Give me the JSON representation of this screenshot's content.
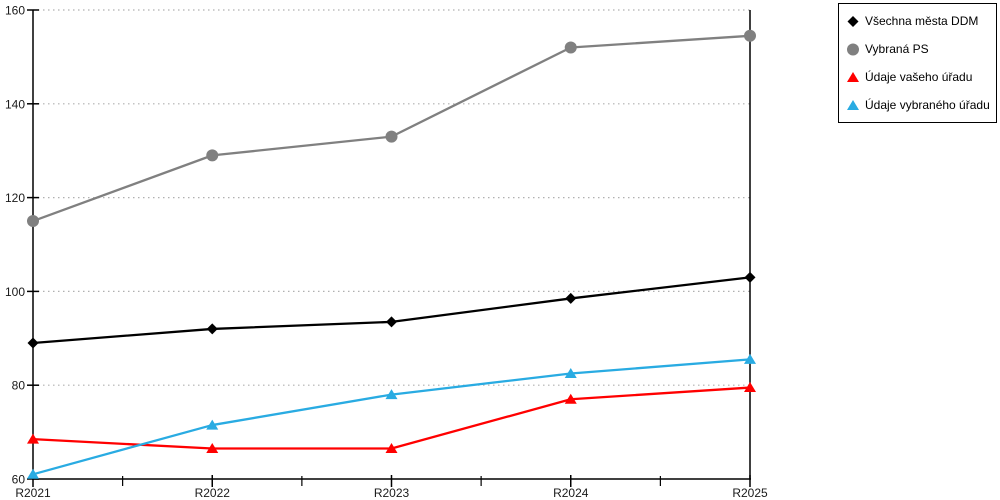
{
  "chart_data": {
    "type": "line",
    "title": "",
    "xlabel": "",
    "ylabel": "",
    "categories": [
      "R2021",
      "R2022",
      "R2023",
      "R2024",
      "R2025"
    ],
    "series": [
      {
        "name": "Všechna města DDM",
        "color": "#000000",
        "marker": "diamond",
        "values": [
          89,
          92,
          93.5,
          98.5,
          103
        ]
      },
      {
        "name": "Vybraná PS",
        "color": "#808080",
        "marker": "circle",
        "values": [
          115,
          129,
          133,
          152,
          154.5
        ]
      },
      {
        "name": "Údaje vašeho úřadu",
        "color": "#ff0000",
        "marker": "triangle",
        "values": [
          68.5,
          66.5,
          66.5,
          77,
          79.5
        ]
      },
      {
        "name": "Údaje vybraného úřadu",
        "color": "#29abe2",
        "marker": "triangle",
        "values": [
          61,
          71.5,
          78,
          82.5,
          85.5
        ]
      }
    ],
    "ylim": [
      60,
      160
    ],
    "yticks": [
      60,
      80,
      100,
      120,
      140,
      160
    ],
    "grid": "horizontal-dotted",
    "minor_x_ticks": true,
    "legend_position": "top-right"
  },
  "colors": {
    "axis": "#000000",
    "grid": "#b0b0b0",
    "background": "#ffffff",
    "text": "#1a1a1a"
  }
}
